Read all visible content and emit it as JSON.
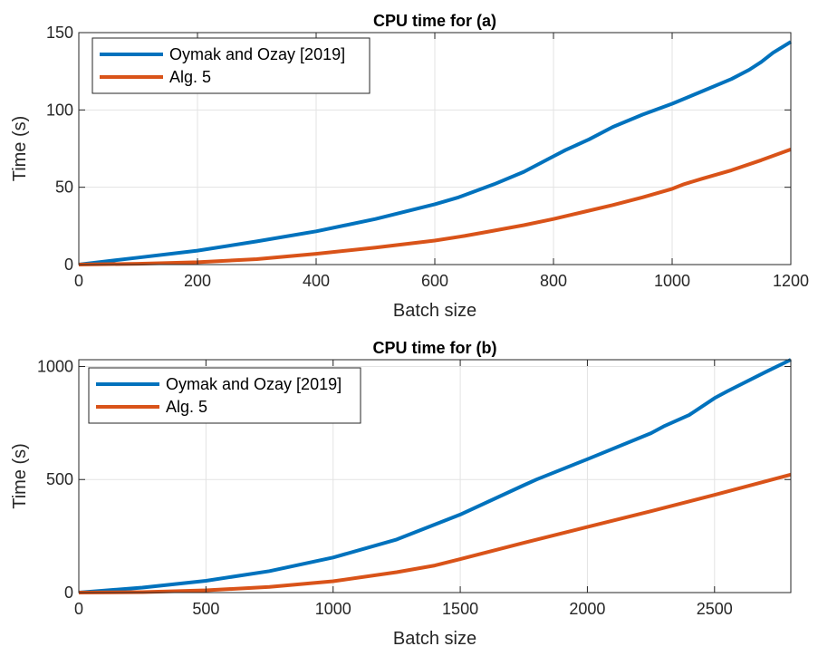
{
  "colors": {
    "series1": "#0072BD",
    "series2": "#D95319",
    "grid": "#e3e3e3",
    "axis": "#262626"
  },
  "chart_data": [
    {
      "type": "line",
      "title": "CPU time for (a)",
      "xlabel": "Batch size",
      "ylabel": "Time (s)",
      "xlim": [
        0,
        1200
      ],
      "ylim": [
        0,
        150
      ],
      "xticks": [
        0,
        200,
        400,
        600,
        800,
        1000,
        1200
      ],
      "yticks": [
        0,
        50,
        100,
        150
      ],
      "grid": true,
      "legend": "top-left",
      "series": [
        {
          "name": "Oymak and Ozay [2019]",
          "x": [
            0,
            100,
            200,
            300,
            400,
            500,
            600,
            640,
            700,
            750,
            800,
            820,
            860,
            900,
            950,
            1000,
            1050,
            1100,
            1130,
            1150,
            1170,
            1200
          ],
          "y": [
            0,
            4.5,
            9,
            15,
            21.5,
            29.5,
            39,
            43.5,
            52,
            60,
            70,
            74,
            81,
            89,
            97,
            104,
            112,
            120,
            126,
            131,
            137,
            144
          ]
        },
        {
          "name": "Alg. 5",
          "x": [
            0,
            100,
            200,
            300,
            400,
            500,
            600,
            650,
            700,
            750,
            800,
            850,
            900,
            950,
            1000,
            1020,
            1050,
            1100,
            1150,
            1200
          ],
          "y": [
            0,
            0.5,
            1.5,
            3.5,
            7,
            11,
            15.5,
            18.5,
            22,
            25.5,
            29.5,
            34,
            38.5,
            43.5,
            49,
            52,
            55.5,
            61,
            67.5,
            74.5
          ]
        }
      ]
    },
    {
      "type": "line",
      "title": "CPU time for (b)",
      "xlabel": "Batch size",
      "ylabel": "Time (s)",
      "xlim": [
        0,
        2800
      ],
      "ylim": [
        0,
        1030
      ],
      "xticks": [
        0,
        500,
        1000,
        1500,
        2000,
        2500
      ],
      "yticks": [
        0,
        500,
        1000
      ],
      "grid": true,
      "legend": "top-left",
      "series": [
        {
          "name": "Oymak and Ozay [2019]",
          "x": [
            0,
            250,
            500,
            750,
            1000,
            1250,
            1500,
            1750,
            1800,
            2000,
            2250,
            2300,
            2400,
            2500,
            2550,
            2700,
            2800
          ],
          "y": [
            0,
            22,
            52,
            95,
            155,
            235,
            345,
            475,
            500,
            590,
            705,
            735,
            785,
            860,
            890,
            975,
            1030
          ]
        },
        {
          "name": "Alg. 5",
          "x": [
            0,
            250,
            500,
            750,
            1000,
            1250,
            1400,
            1500,
            1750,
            2000,
            2250,
            2500,
            2800
          ],
          "y": [
            0,
            2,
            10,
            25,
            50,
            90,
            120,
            148,
            220,
            290,
            360,
            432,
            522
          ]
        }
      ]
    }
  ]
}
